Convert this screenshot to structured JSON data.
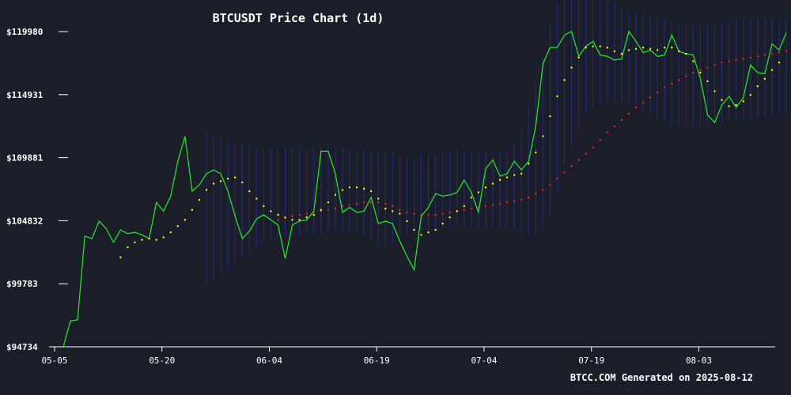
{
  "chart_data": {
    "type": "line",
    "title": "BTCUSDT Price Chart (1d)",
    "footer": "BTCC.COM Generated on 2025-08-12",
    "ylim": [
      94734,
      119980
    ],
    "y_ticks": [
      {
        "value": 119980,
        "label": "$119980"
      },
      {
        "value": 114931,
        "label": "$114931"
      },
      {
        "value": 109881,
        "label": "$109881"
      },
      {
        "value": 104832,
        "label": "$104832"
      },
      {
        "value": 99783,
        "label": "$99783"
      },
      {
        "value": 94734,
        "label": "$94734"
      }
    ],
    "x_ticks": [
      {
        "index": 0,
        "label": "05-05"
      },
      {
        "index": 15,
        "label": "05-20"
      },
      {
        "index": 30,
        "label": "06-04"
      },
      {
        "index": 45,
        "label": "06-19"
      },
      {
        "index": 60,
        "label": "07-04"
      },
      {
        "index": 75,
        "label": "07-19"
      },
      {
        "index": 90,
        "label": "08-03"
      }
    ],
    "colors": {
      "background": "#1b1e29",
      "price": "#22ee22",
      "short_ma": "#ffff00",
      "long_ma": "#ee2222",
      "band": "#24286e"
    },
    "series": [
      {
        "name": "Price",
        "type": "line",
        "start_index": 0,
        "values": [
          94734,
          96800,
          96900,
          103600,
          103400,
          104800,
          104200,
          103100,
          104100,
          103800,
          103900,
          103700,
          103400,
          106300,
          105600,
          106800,
          109600,
          111600,
          107200,
          107700,
          108600,
          108900,
          108600,
          107200,
          105200,
          103400,
          104000,
          105000,
          105300,
          104900,
          104500,
          101800,
          104500,
          104800,
          104900,
          105600,
          110400,
          110400,
          108600,
          105500,
          105900,
          105500,
          105600,
          106700,
          104600,
          104800,
          104600,
          103200,
          102000,
          100900,
          105200,
          105900,
          107000,
          106800,
          106900,
          107100,
          108100,
          107100,
          105500,
          109000,
          109700,
          108400,
          108600,
          109600,
          108900,
          109600,
          112400,
          117400,
          118700,
          118700,
          119700,
          120000,
          118000,
          118800,
          119200,
          118100,
          118000,
          117700,
          117800,
          120000,
          119200,
          118300,
          118500,
          118000,
          118100,
          119700,
          118400,
          118200,
          118100,
          116200,
          113300,
          112700,
          114100,
          114800,
          113900,
          114700,
          117300,
          116700,
          116600,
          119000,
          118500,
          119900
        ]
      },
      {
        "name": "Short MA",
        "type": "dots",
        "start_index": 8,
        "values": [
          101900,
          102700,
          103100,
          103300,
          103400,
          103300,
          103500,
          103900,
          104400,
          104900,
          105700,
          106500,
          107300,
          107800,
          108000,
          108200,
          108300,
          107900,
          107200,
          106600,
          106000,
          105600,
          105300,
          105100,
          104900,
          104900,
          105100,
          105300,
          105700,
          106300,
          106900,
          107300,
          107500,
          107500,
          107400,
          107200,
          106600,
          105800,
          105600,
          105400,
          104800,
          104100,
          103700,
          103900,
          104100,
          104600,
          105100,
          105600,
          106000,
          106700,
          107100,
          107500,
          107800,
          108100,
          108300,
          108500,
          108600,
          109400,
          110300,
          111600,
          113200,
          114800,
          116100,
          117100,
          117900,
          118700,
          118800,
          118800,
          118700,
          118400,
          118200,
          118500,
          118600,
          118700,
          118600,
          118500,
          118700,
          118700,
          118400,
          118200,
          117600,
          116700,
          116000,
          115200,
          114500,
          114000,
          114100,
          114400,
          114900,
          115600,
          116200,
          116900,
          117500
        ]
      },
      {
        "name": "Long MA",
        "type": "dots",
        "start_index": 30,
        "values": [
          104900,
          105000,
          105200,
          105300,
          105400,
          105500,
          105600,
          105700,
          105800,
          106000,
          106100,
          106200,
          106300,
          106300,
          106300,
          106200,
          106000,
          105700,
          105500,
          105400,
          105300,
          105300,
          105300,
          105400,
          105500,
          105600,
          105700,
          105800,
          105900,
          106000,
          106100,
          106200,
          106300,
          106400,
          106500,
          106700,
          107000,
          107300,
          107700,
          108200,
          108700,
          109200,
          109700,
          110200,
          110700,
          111300,
          111900,
          112400,
          112900,
          113400,
          113900,
          114300,
          114700,
          115100,
          115500,
          115800,
          116100,
          116400,
          116700,
          116900,
          117100,
          117300,
          117500,
          117600,
          117700,
          117800,
          117900,
          118000,
          118100,
          118200,
          118300,
          118400
        ]
      },
      {
        "name": "Bollinger Band",
        "type": "band",
        "start_index": 20,
        "upper": [
          111900,
          111600,
          111400,
          111200,
          111000,
          110900,
          110800,
          110700,
          110600,
          110600,
          110600,
          110700,
          110700,
          110700,
          110600,
          110700,
          110800,
          110900,
          110800,
          110700,
          110600,
          110500,
          110500,
          110400,
          110300,
          110300,
          110200,
          110100,
          110000,
          110000,
          110100,
          110100,
          110200,
          110400,
          110500,
          110600,
          110500,
          110400,
          110400,
          110400,
          110400,
          110500,
          110500,
          111100,
          112300,
          113900,
          115800,
          118000,
          120500,
          122300,
          123000,
          123200,
          123300,
          123200,
          123000,
          122900,
          122600,
          122300,
          122100,
          121600,
          121500,
          121400,
          121200,
          121100,
          121000,
          120800,
          120700,
          120600,
          120500,
          120500,
          120500,
          120600,
          120700,
          120800,
          120900,
          121000,
          121000,
          121000,
          121000,
          121000,
          121000,
          121000
        ],
        "lower": [
          99700,
          100000,
          100500,
          101000,
          101500,
          102000,
          102400,
          102700,
          103100,
          103400,
          103500,
          103600,
          103600,
          103600,
          103700,
          103700,
          103800,
          103900,
          104000,
          104100,
          104000,
          103900,
          103600,
          103300,
          102900,
          102800,
          103000,
          103300,
          103600,
          103700,
          103900,
          104000,
          104100,
          104300,
          104400,
          104400,
          104300,
          104300,
          104300,
          104300,
          104200,
          104300,
          104300,
          104100,
          103800,
          103600,
          103800,
          104400,
          105400,
          107200,
          109300,
          110800,
          112100,
          113300,
          113800,
          114200,
          114500,
          114500,
          114400,
          114300,
          114000,
          113600,
          113300,
          113000,
          112800,
          112600,
          112500,
          112400,
          112400,
          112500,
          112500,
          112600,
          112700,
          112800,
          112900,
          113000,
          113100,
          113100,
          113200,
          113200,
          113300,
          113300
        ]
      }
    ]
  }
}
